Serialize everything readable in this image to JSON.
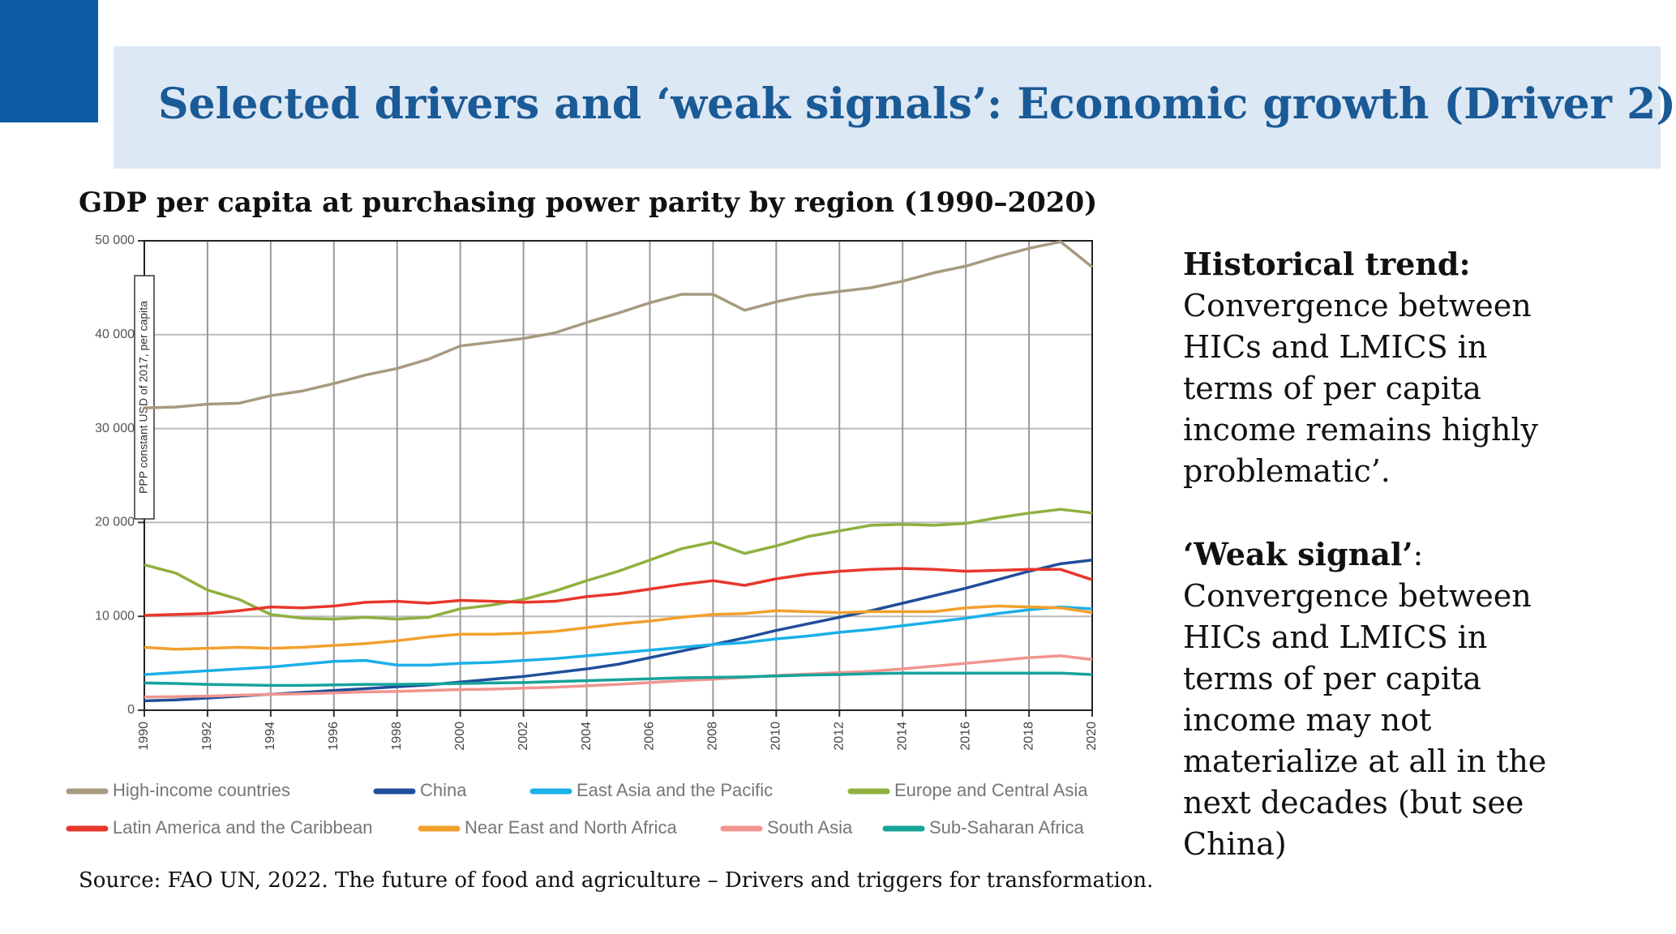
{
  "slide_title": "Selected drivers and ‘weak signals’: Economic growth (Driver 2)",
  "chart_data": {
    "type": "line",
    "title": "GDP per capita at purchasing power parity by region (1990–2020)",
    "y_label": "PPP constant USD of 2017, per capita",
    "x": [
      1990,
      1991,
      1992,
      1993,
      1994,
      1995,
      1996,
      1997,
      1998,
      1999,
      2000,
      2001,
      2002,
      2003,
      2004,
      2005,
      2006,
      2007,
      2008,
      2009,
      2010,
      2011,
      2012,
      2013,
      2014,
      2015,
      2016,
      2017,
      2018,
      2019,
      2020
    ],
    "xlim": [
      1990,
      2020
    ],
    "xticks": [
      1990,
      1992,
      1994,
      1996,
      1998,
      2000,
      2002,
      2004,
      2006,
      2008,
      2010,
      2012,
      2014,
      2016,
      2018,
      2020
    ],
    "ylim": [
      0,
      50000
    ],
    "yticks": [
      0,
      {
        "value": 10000,
        "label": "10 000"
      },
      {
        "value": 20000,
        "label": "20 000"
      },
      {
        "value": 30000,
        "label": "30 000"
      },
      {
        "value": 40000,
        "label": "40 000"
      },
      {
        "value": 50000,
        "label": "50 000"
      }
    ],
    "grid": true,
    "series": [
      {
        "name": "High-income countries",
        "color": "#a89a80",
        "values": [
          32200,
          32300,
          32600,
          32700,
          33500,
          34000,
          34800,
          35700,
          36400,
          37400,
          38800,
          39200,
          39600,
          40200,
          41300,
          42300,
          43400,
          44300,
          44300,
          42600,
          43500,
          44200,
          44600,
          45000,
          45700,
          46600,
          47300,
          48300,
          49200,
          49900,
          47200
        ]
      },
      {
        "name": "China",
        "color": "#1f4e9a",
        "values": [
          1000,
          1100,
          1300,
          1500,
          1700,
          1900,
          2100,
          2300,
          2500,
          2700,
          3000,
          3300,
          3600,
          4000,
          4400,
          4900,
          5600,
          6300,
          7000,
          7700,
          8500,
          9200,
          9900,
          10600,
          11400,
          12200,
          13000,
          13900,
          14800,
          15600,
          16000
        ]
      },
      {
        "name": "East Asia and the Pacific",
        "color": "#1ab0e8",
        "values": [
          3800,
          4000,
          4200,
          4400,
          4600,
          4900,
          5200,
          5300,
          4800,
          4800,
          5000,
          5100,
          5300,
          5500,
          5800,
          6100,
          6400,
          6700,
          7000,
          7200,
          7600,
          7900,
          8300,
          8600,
          9000,
          9400,
          9800,
          10300,
          10700,
          11000,
          10800
        ]
      },
      {
        "name": "Europe and Central Asia",
        "color": "#8fb03e",
        "values": [
          15500,
          14600,
          12800,
          11800,
          10200,
          9800,
          9700,
          9900,
          9700,
          9900,
          10800,
          11200,
          11800,
          12700,
          13800,
          14800,
          16000,
          17200,
          17900,
          16700,
          17500,
          18500,
          19100,
          19700,
          19800,
          19700,
          19900,
          20500,
          21000,
          21400,
          21000
        ]
      },
      {
        "name": "Latin America and the Caribbean",
        "color": "#e8372c",
        "values": [
          10100,
          10200,
          10300,
          10600,
          11000,
          10900,
          11100,
          11500,
          11600,
          11400,
          11700,
          11600,
          11500,
          11600,
          12100,
          12400,
          12900,
          13400,
          13800,
          13300,
          14000,
          14500,
          14800,
          15000,
          15100,
          15000,
          14800,
          14900,
          15000,
          15000,
          13900
        ]
      },
      {
        "name": "Near East and North Africa",
        "color": "#f2a02c",
        "values": [
          6700,
          6500,
          6600,
          6700,
          6600,
          6700,
          6900,
          7100,
          7400,
          7800,
          8100,
          8100,
          8200,
          8400,
          8800,
          9200,
          9500,
          9900,
          10200,
          10300,
          10600,
          10500,
          10400,
          10500,
          10500,
          10500,
          10900,
          11100,
          11000,
          10900,
          10400
        ]
      },
      {
        "name": "South Asia",
        "color": "#f0958f",
        "values": [
          1400,
          1450,
          1500,
          1600,
          1700,
          1750,
          1850,
          1950,
          2000,
          2100,
          2200,
          2250,
          2350,
          2450,
          2600,
          2750,
          2950,
          3150,
          3300,
          3500,
          3700,
          3850,
          4000,
          4150,
          4400,
          4700,
          5000,
          5300,
          5600,
          5800,
          5400
        ]
      },
      {
        "name": "Sub-Saharan Africa",
        "color": "#16a39a",
        "values": [
          2900,
          2850,
          2750,
          2700,
          2650,
          2650,
          2700,
          2750,
          2750,
          2800,
          2850,
          2900,
          2950,
          3050,
          3150,
          3250,
          3350,
          3450,
          3500,
          3550,
          3650,
          3750,
          3800,
          3900,
          3950,
          3950,
          3950,
          3950,
          3950,
          3950,
          3800
        ]
      }
    ]
  },
  "source": "Source: FAO UN, 2022. The future of food and agriculture – Drivers and triggers for transformation.",
  "historical_heading": "Historical trend:",
  "historical_body": "Convergence between HICs and LMICS in terms of per capita income remains highly problematic’.",
  "weak_signal_heading": "‘Weak signal’",
  "weak_signal_suffix": ":",
  "weak_signal_body": "Convergence between HICs and LMICS in terms of per capita income may not materialize at all in the next decades (but see China)"
}
